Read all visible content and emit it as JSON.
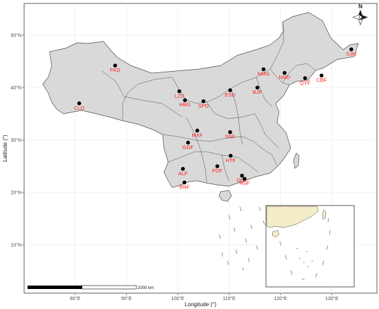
{
  "map": {
    "x_axis": {
      "title": "Longitude (°)",
      "ticks": [
        {
          "value": 80,
          "label": "80°E"
        },
        {
          "value": 90,
          "label": "90°E"
        },
        {
          "value": 100,
          "label": "100°E"
        },
        {
          "value": 110,
          "label": "110°E"
        },
        {
          "value": 120,
          "label": "120°E"
        },
        {
          "value": 130,
          "label": "130°E"
        }
      ]
    },
    "y_axis": {
      "title": "Latitude (°)",
      "ticks": [
        {
          "value": 10,
          "label": "10°N"
        },
        {
          "value": 20,
          "label": "20°N"
        },
        {
          "value": 30,
          "label": "30°N"
        },
        {
          "value": 40,
          "label": "40°N"
        },
        {
          "value": 50,
          "label": "50°N"
        }
      ]
    },
    "scale_bar": {
      "label": "2000 km"
    },
    "north_arrow": {
      "label": "N",
      "icon": "north-arrow-icon"
    },
    "colors": {
      "land": "#d9d9d9",
      "border": "#4d4d4d",
      "point": "#000000",
      "label": "#ff1a1a",
      "grid": "#ebebeb",
      "inset_land": "#f5ecc8"
    },
    "sites": [
      {
        "code": "FKD",
        "lon": 87.8,
        "lat": 44.2
      },
      {
        "code": "CLD",
        "lon": 80.8,
        "lat": 37.0
      },
      {
        "code": "LZD",
        "lon": 100.3,
        "lat": 39.3
      },
      {
        "code": "HBG",
        "lon": 101.4,
        "lat": 37.6
      },
      {
        "code": "SPD",
        "lon": 105.0,
        "lat": 37.4
      },
      {
        "code": "ESD",
        "lon": 110.2,
        "lat": 39.5
      },
      {
        "code": "BJF",
        "lon": 115.5,
        "lat": 40.0
      },
      {
        "code": "NMG",
        "lon": 116.7,
        "lat": 43.5
      },
      {
        "code": "NMD",
        "lon": 120.8,
        "lat": 42.8
      },
      {
        "code": "QYF",
        "lon": 124.8,
        "lat": 41.8
      },
      {
        "code": "CBF",
        "lon": 128.0,
        "lat": 42.3
      },
      {
        "code": "SJM",
        "lon": 133.8,
        "lat": 47.3
      },
      {
        "code": "MXF",
        "lon": 103.8,
        "lat": 31.8
      },
      {
        "code": "SNF",
        "lon": 110.2,
        "lat": 31.5
      },
      {
        "code": "GGF",
        "lon": 102.0,
        "lat": 29.5
      },
      {
        "code": "HTF",
        "lon": 110.3,
        "lat": 27.0
      },
      {
        "code": "PDF",
        "lon": 107.7,
        "lat": 25.0
      },
      {
        "code": "ALF",
        "lon": 101.0,
        "lat": 24.5
      },
      {
        "code": "DHF",
        "lon": 112.5,
        "lat": 23.2
      },
      {
        "code": "HSF",
        "lon": 113.0,
        "lat": 22.6
      },
      {
        "code": "BNF",
        "lon": 101.3,
        "lat": 21.9
      }
    ]
  }
}
